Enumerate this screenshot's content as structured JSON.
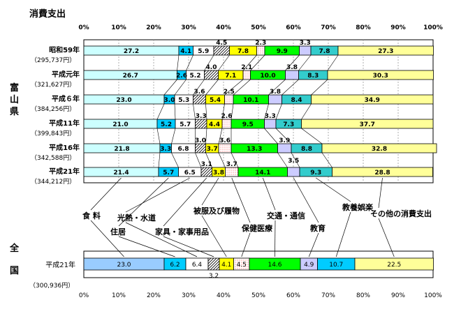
{
  "chart_data": {
    "type": "bar",
    "title": "消費支出",
    "stacked": "100%",
    "region_labels": [
      "富",
      "山",
      "県"
    ],
    "national_region_labels": [
      "全",
      "国"
    ],
    "x_ticks_top": [
      "0%",
      "10%",
      "20%",
      "30%",
      "40%",
      "50%",
      "60%",
      "70%",
      "80%",
      "90%",
      "100%"
    ],
    "x_ticks_bottom": [
      "0%",
      "10%",
      "20%",
      "30%",
      "40%",
      "50%",
      "60%",
      "70%",
      "80%",
      "90%",
      "100%"
    ],
    "xlim": [
      0,
      100
    ],
    "grid": true,
    "legend_position": "middle",
    "series_names": [
      "食 料",
      "住居",
      "光熱・水道",
      "家具・家事用品",
      "被服及び履物",
      "保健医療",
      "交通・通信",
      "教育",
      "教養娯楽",
      "その他の消費支出"
    ],
    "colors": [
      "#ccffff",
      "#00ccff",
      "#ffffff",
      "#ffffff",
      "#ffff00",
      "#ffffff",
      "#00ff00",
      "#ccccff",
      "#33cccc",
      "#ffff99"
    ],
    "national_colors": [
      "#99ccff",
      "#00ccff",
      "#ffffff",
      "#ffffff",
      "#ffff00",
      "#ffffff",
      "#00ff00",
      "#ccccff",
      "#00ccff",
      "#ffff99"
    ],
    "patterns": [
      "none",
      "none",
      "none",
      "hatch",
      "none",
      "dots",
      "none",
      "none",
      "none",
      "none"
    ],
    "rows": [
      {
        "year": "昭和59年",
        "amount": "（295,737円）",
        "values": [
          27.2,
          4.1,
          5.9,
          4.5,
          7.8,
          2.3,
          9.9,
          3.3,
          7.8,
          27.3
        ],
        "labels": [
          "27.2",
          "4.1",
          "5.9",
          "4.5",
          "7.8",
          "2.3",
          "9.9",
          "3.3",
          "7.8",
          "27.3"
        ]
      },
      {
        "year": "平成元年",
        "amount": "（321,627円）",
        "values": [
          26.7,
          2.6,
          5.2,
          4.0,
          7.1,
          2.1,
          10.0,
          3.8,
          8.3,
          30.3
        ],
        "labels": [
          "26.7",
          "2.6",
          "5.2",
          "4.0",
          "7.1",
          "2.1",
          "10.0",
          "3.8",
          "8.3",
          "30.3"
        ]
      },
      {
        "year": "平成６年",
        "amount": "（384,256円）",
        "values": [
          23.0,
          3.0,
          5.3,
          3.6,
          5.4,
          2.5,
          10.1,
          3.8,
          8.4,
          34.9
        ],
        "labels": [
          "23.0",
          "3.0",
          "5.3",
          "3.6",
          "5.4",
          "2.5",
          "10.1",
          "3.8",
          "8.4",
          "34.9"
        ]
      },
      {
        "year": "平成11年",
        "amount": "（399,843円）",
        "values": [
          21.0,
          5.2,
          5.7,
          3.3,
          4.4,
          2.6,
          9.5,
          3.3,
          7.3,
          37.7
        ],
        "labels": [
          "21.0",
          "5.2",
          "5.7",
          "3.3",
          "4.4",
          "2.6",
          "9.5",
          "3.3",
          "7.3",
          "37.7"
        ]
      },
      {
        "year": "平成16年",
        "amount": "（342,588円）",
        "values": [
          21.8,
          3.3,
          6.8,
          3.0,
          3.7,
          3.6,
          13.3,
          3.9,
          8.8,
          32.8
        ],
        "labels": [
          "21.8",
          "3.3",
          "6.8",
          "3.0",
          "3.7",
          "3.6",
          "13.3",
          "3.9",
          "8.8",
          "32.8"
        ]
      },
      {
        "year": "平成21年",
        "amount": "（344,212円）",
        "values": [
          21.4,
          5.7,
          6.5,
          3.1,
          3.8,
          3.7,
          14.1,
          3.5,
          9.3,
          28.8
        ],
        "labels": [
          "21.4",
          "5.7",
          "6.5",
          "3.1",
          "3.8",
          "3.7",
          "14.1",
          "3.5",
          "9.3",
          "28.8"
        ]
      }
    ],
    "national": {
      "year": "平成21年",
      "amount": "（300,936円）",
      "values": [
        23.0,
        6.2,
        6.4,
        3.2,
        4.1,
        4.5,
        14.6,
        4.9,
        10.7,
        22.5
      ],
      "labels": [
        "23.0",
        "6.2",
        "6.4",
        "3.2",
        "4.1",
        "4.5",
        "14.6",
        "4.9",
        "10.7",
        "22.5"
      ]
    }
  }
}
